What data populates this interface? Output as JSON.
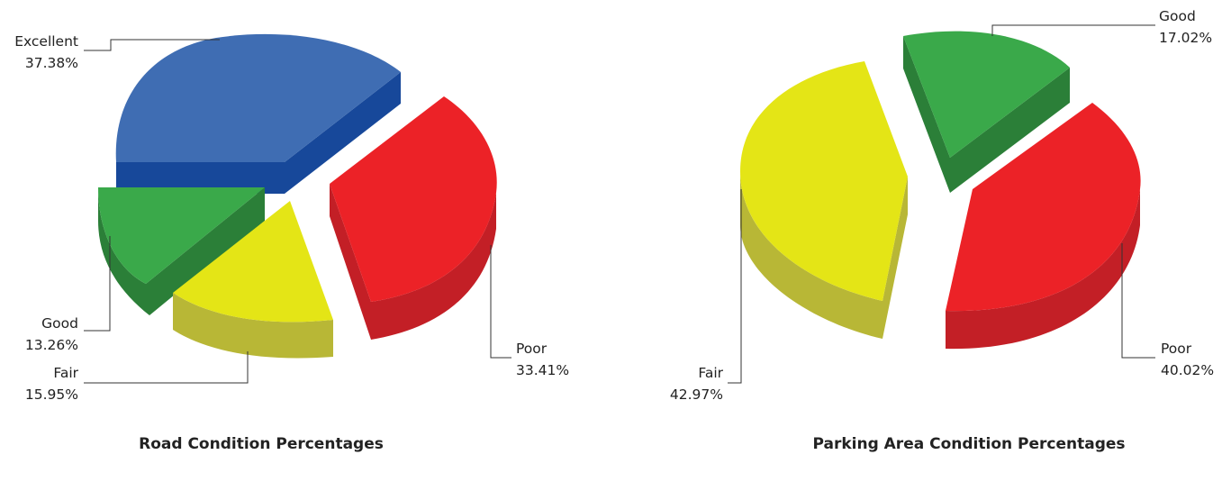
{
  "chart_data": [
    {
      "type": "pie",
      "style": "3d-exploded",
      "title": "Road Condition Percentages",
      "legend": "none",
      "slices": [
        {
          "label": "Excellent",
          "value": 37.38,
          "value_label": "37.38%",
          "color": "#3F6DB3",
          "side_color": "#17489A"
        },
        {
          "label": "Good",
          "value": 13.26,
          "value_label": "13.26%",
          "color": "#3AA94A",
          "side_color": "#2B7F38"
        },
        {
          "label": "Fair",
          "value": 15.95,
          "value_label": "15.95%",
          "color": "#E4E516",
          "side_color": "#B8B736"
        },
        {
          "label": "Poor",
          "value": 33.41,
          "value_label": "33.41%",
          "color": "#EC2227",
          "side_color": "#C31F26"
        }
      ]
    },
    {
      "type": "pie",
      "style": "3d-exploded",
      "title": "Parking Area Condition Percentages",
      "legend": "none",
      "slices": [
        {
          "label": "Good",
          "value": 17.02,
          "value_label": "17.02%",
          "color": "#3AA94A",
          "side_color": "#2B7F38"
        },
        {
          "label": "Poor",
          "value": 40.02,
          "value_label": "40.02%",
          "color": "#EC2227",
          "side_color": "#C31F26"
        },
        {
          "label": "Fair",
          "value": 42.97,
          "value_label": "42.97%",
          "color": "#E4E516",
          "side_color": "#B8B736"
        }
      ]
    }
  ]
}
